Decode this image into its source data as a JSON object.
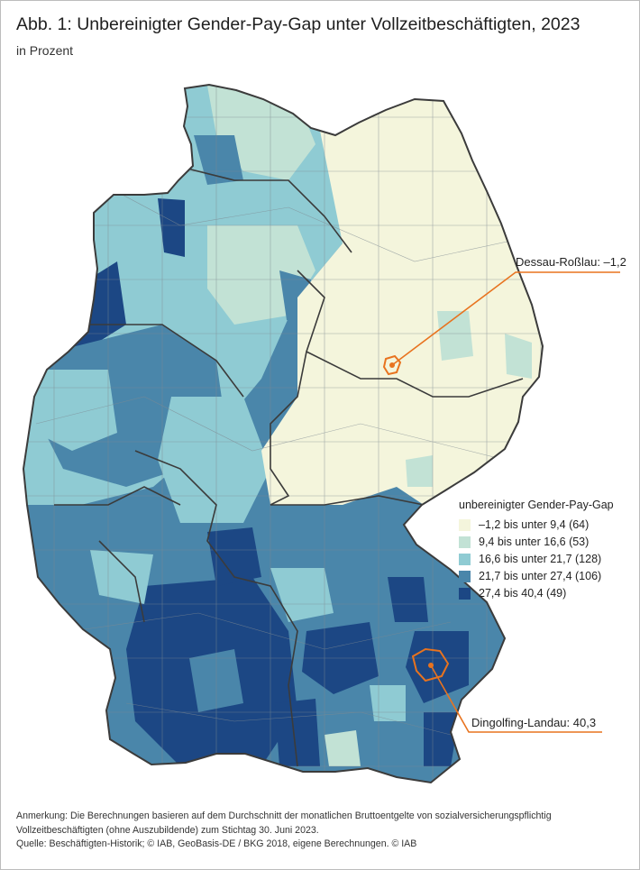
{
  "title": "Abb. 1: Unbereinigter Gender-Pay-Gap unter Vollzeitbeschäftigten, 2023",
  "subtitle": "in Prozent",
  "legend": {
    "title": "unbereinigter Gender-Pay-Gap",
    "items": [
      {
        "label": "–1,2 bis unter 9,4 (64)",
        "color": "#f4f5dc"
      },
      {
        "label": "9,4 bis unter 16,6 (53)",
        "color": "#c2e2d5"
      },
      {
        "label": "16,6  bis unter 21,7 (128)",
        "color": "#8fcbd3"
      },
      {
        "label": "21,7  bis unter 27,4 (106)",
        "color": "#4a86aa"
      },
      {
        "label": "27,4  bis 40,4 (49)",
        "color": "#1c4784"
      }
    ]
  },
  "callouts": [
    {
      "label": "Dessau-Roßlau: –1,2",
      "color": "#e8731f"
    },
    {
      "label": "Dingolfing-Landau: 40,3",
      "color": "#e8731f"
    }
  ],
  "notes": {
    "line1": "Anmerkung: Die Berechnungen basieren auf dem Durchschnitt der monatlichen Bruttoentgelte von sozialversicherungspflichtig",
    "line2": "Vollzeitbeschäftigten (ohne Auszubildende) zum Stichtag 30. Juni 2023.",
    "line3": "Quelle: Beschäftigten-Historik; © IAB, GeoBasis-DE / BKG 2018, eigene Berechnungen.   © IAB"
  }
}
